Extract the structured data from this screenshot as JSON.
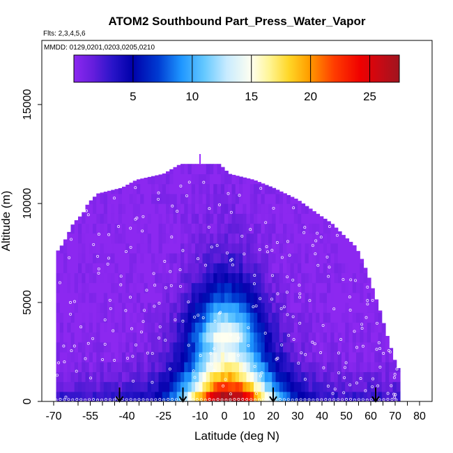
{
  "chart_data": {
    "type": "heatmap",
    "title": "ATOM2 Southbound Part_Press_Water_Vapor",
    "flights_text": "Flts: 2,3,4,5,6",
    "dates_text": "MMDD: 0129,0201,0203,0205,0210",
    "xlabel": "Latitude (deg N)",
    "ylabel": "Altitude (m)",
    "xlim": [
      -70,
      80
    ],
    "ylim": [
      0,
      17500
    ],
    "x_ticks": [
      -70,
      -55,
      -40,
      -25,
      -10,
      0,
      10,
      20,
      30,
      40,
      50,
      60,
      70,
      80
    ],
    "x_tick_labels": [
      "-70",
      "-55",
      "-40",
      "-25",
      "-10",
      "0",
      "10",
      "20",
      "30",
      "40",
      "50",
      "60",
      "70",
      "80"
    ],
    "x_minor_ticks": [
      -60,
      -50,
      -45,
      -35,
      -30,
      -20,
      -15,
      -5,
      5,
      15,
      25,
      35,
      45,
      55,
      65,
      75
    ],
    "y_ticks": [
      0,
      5000,
      10000,
      15000
    ],
    "y_tick_labels": [
      "0",
      "5000",
      "10000",
      "15000"
    ],
    "colorbar": {
      "min": 0,
      "max": 27.5,
      "ticks": [
        5,
        10,
        15,
        20,
        25
      ],
      "tick_labels": [
        "5",
        "10",
        "15",
        "20",
        "25"
      ]
    },
    "field": {
      "lat_min": -69,
      "lat_max": 72,
      "lat_step": 1.5,
      "alt_step": 500,
      "top_profile": [
        {
          "lat": -69,
          "top": 7500
        },
        {
          "lat": -66,
          "top": 8000
        },
        {
          "lat": -64,
          "top": 8500
        },
        {
          "lat": -62,
          "top": 9000
        },
        {
          "lat": -58,
          "top": 9500
        },
        {
          "lat": -56,
          "top": 10000
        },
        {
          "lat": -52,
          "top": 10500
        },
        {
          "lat": -42,
          "top": 10800
        },
        {
          "lat": -36,
          "top": 11200
        },
        {
          "lat": -25,
          "top": 11500
        },
        {
          "lat": -18,
          "top": 12000
        },
        {
          "lat": -2,
          "top": 12000
        },
        {
          "lat": 2,
          "top": 11500
        },
        {
          "lat": 12,
          "top": 11200
        },
        {
          "lat": 20,
          "top": 10800
        },
        {
          "lat": 30,
          "top": 10200
        },
        {
          "lat": 38,
          "top": 9500
        },
        {
          "lat": 44,
          "top": 9000
        },
        {
          "lat": 48,
          "top": 8500
        },
        {
          "lat": 54,
          "top": 7800
        },
        {
          "lat": 57,
          "top": 7000
        },
        {
          "lat": 60,
          "top": 6000
        },
        {
          "lat": 64,
          "top": 4500
        },
        {
          "lat": 67,
          "top": 3200
        },
        {
          "lat": 70,
          "top": 2000
        },
        {
          "lat": 72,
          "top": 1500
        }
      ]
    },
    "arrows_lat": [
      -43,
      -17,
      20,
      62
    ]
  }
}
